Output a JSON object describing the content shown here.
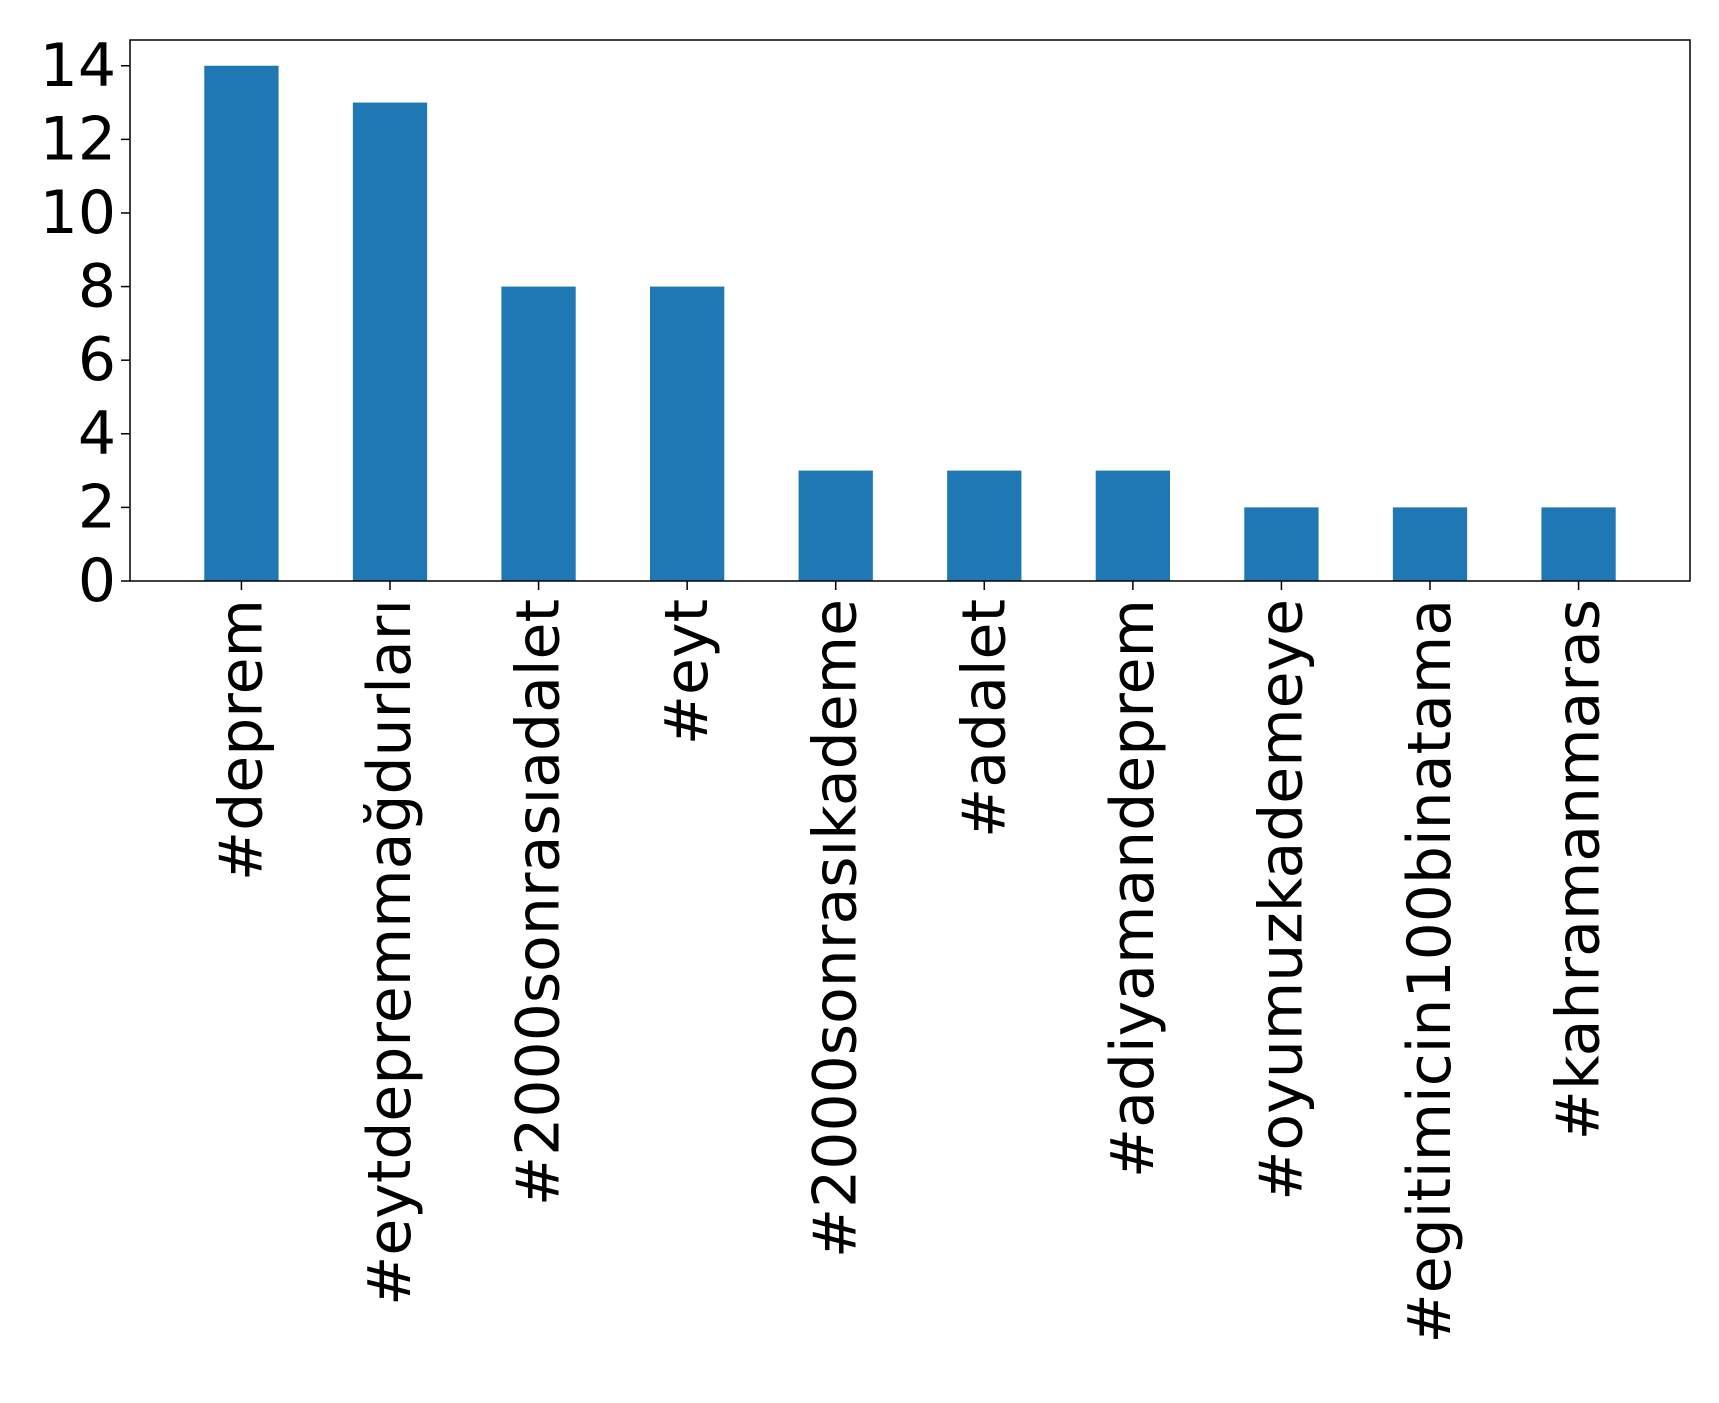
{
  "chart_data": {
    "type": "bar",
    "title": "",
    "xlabel": "",
    "ylabel": "",
    "categories": [
      "#deprem",
      "#eytdepremmağdurları",
      "#2000sonrasıadalet",
      "#eyt",
      "#2000sonrasıkademe",
      "#adalet",
      "#adiyamandeprem",
      "#oyumuzkademeye",
      "#egitimicin100binatama",
      "#kahramanmaras"
    ],
    "values": [
      14,
      13,
      8,
      8,
      3,
      3,
      3,
      2,
      2,
      2
    ],
    "ylim": [
      0,
      14.7
    ],
    "yticks": [
      0,
      2,
      4,
      6,
      8,
      10,
      12,
      14
    ],
    "grid": false,
    "legend": "none",
    "bar_color": "#1f77b4"
  }
}
